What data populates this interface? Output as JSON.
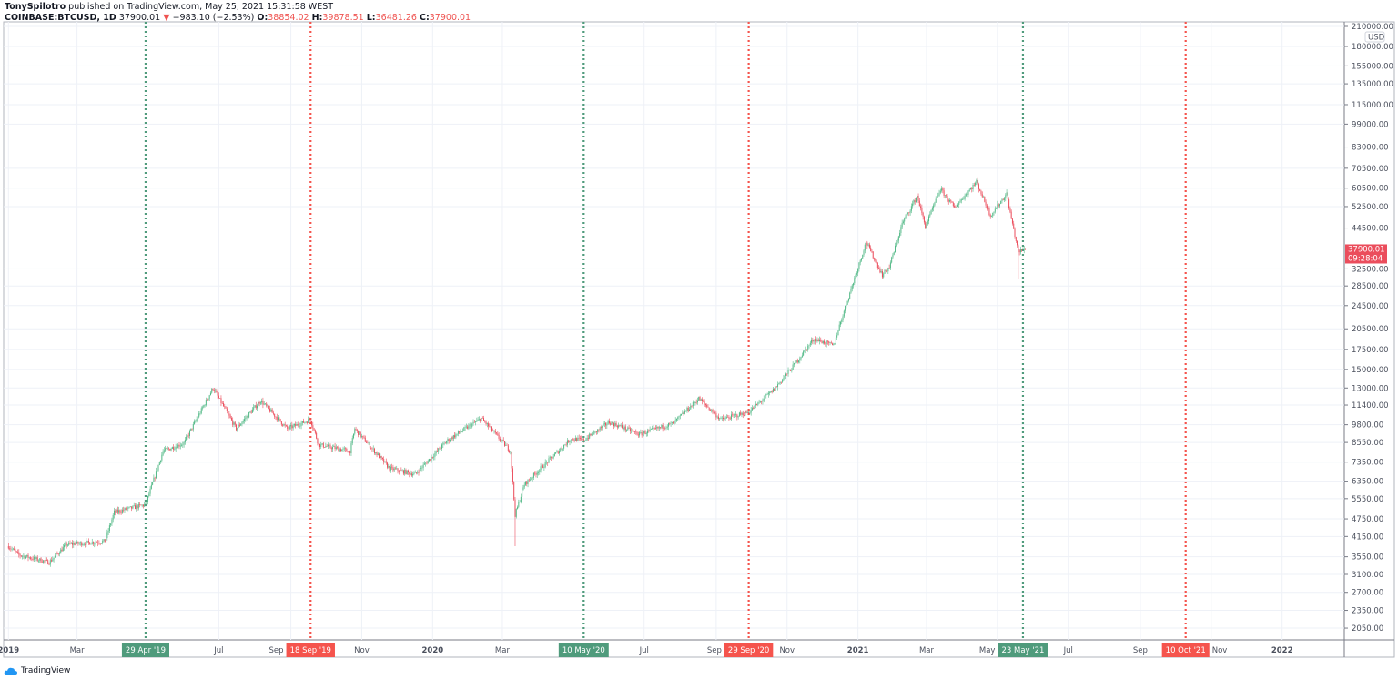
{
  "header": {
    "publisher": "TonySpilotro",
    "published_text": "published on TradingView.com, May 25, 2021 15:31:58 WEST",
    "symbol": "COINBASE:BTCUSD, 1D",
    "last": "37900.01",
    "change": "−983.10 (−2.53%)",
    "open_label": "O:",
    "open": "38854.02",
    "high_label": "H:",
    "high": "39878.51",
    "low_label": "L:",
    "low": "36481.26",
    "close_label": "C:",
    "close": "37900.01"
  },
  "footer": {
    "brand": "TradingView"
  },
  "colors": {
    "up": "#53b987",
    "down": "#eb4d5c",
    "green_marker": "#4f9b7c",
    "red_marker": "#f5544d",
    "grid": "#eef1f7"
  },
  "chart_data": {
    "type": "candlestick",
    "y_scale": "log",
    "y_unit": "USD",
    "ylim": [
      1900,
      210000
    ],
    "xlim": [
      "2019-01-01",
      "2022-03-15"
    ],
    "grid": true,
    "y_ticks": [
      "210000.00",
      "180000.00",
      "155000.00",
      "135000.00",
      "115000.00",
      "99000.00",
      "83000.00",
      "70500.00",
      "60500.00",
      "52500.00",
      "44500.00",
      "32500.00",
      "28500.00",
      "24500.00",
      "20500.00",
      "17500.00",
      "15000.00",
      "13000.00",
      "11400.00",
      "9800.00",
      "8550.00",
      "7350.00",
      "6350.00",
      "5550.00",
      "4750.00",
      "4150.00",
      "3550.00",
      "3100.00",
      "2700.00",
      "2350.00",
      "2050.00"
    ],
    "x_ticks": [
      {
        "date": "2019-01-01",
        "label": "2019"
      },
      {
        "date": "2019-03-01",
        "label": "Mar"
      },
      {
        "date": "2019-07-01",
        "label": "Jul"
      },
      {
        "date": "2019-09-01",
        "label": "Sep"
      },
      {
        "date": "2019-11-01",
        "label": "Nov"
      },
      {
        "date": "2020-01-01",
        "label": "2020"
      },
      {
        "date": "2020-03-01",
        "label": "Mar"
      },
      {
        "date": "2020-07-01",
        "label": "Jul"
      },
      {
        "date": "2020-09-01",
        "label": "Sep"
      },
      {
        "date": "2020-11-01",
        "label": "Nov"
      },
      {
        "date": "2021-01-01",
        "label": "2021"
      },
      {
        "date": "2021-03-01",
        "label": "Mar"
      },
      {
        "date": "2021-05-01",
        "label": "May"
      },
      {
        "date": "2021-07-01",
        "label": "Jul"
      },
      {
        "date": "2021-09-01",
        "label": "Sep"
      },
      {
        "date": "2021-11-01",
        "label": "Nov"
      },
      {
        "date": "2022-01-01",
        "label": "2022"
      }
    ],
    "price_label": {
      "value": "37900.01",
      "countdown": "09:28:04"
    },
    "markers": [
      {
        "date": "2019-04-29",
        "label": "29 Apr '19",
        "color": "green"
      },
      {
        "date": "2019-09-18",
        "label": "18 Sep '19",
        "color": "red"
      },
      {
        "date": "2020-05-10",
        "label": "10 May '20",
        "color": "green"
      },
      {
        "date": "2020-09-29",
        "label": "29 Sep '20",
        "color": "red"
      },
      {
        "date": "2021-05-23",
        "label": "23 May '21",
        "color": "green"
      },
      {
        "date": "2021-10-10",
        "label": "10 Oct '21",
        "color": "red"
      }
    ],
    "close_approx": [
      [
        "2019-01-01",
        3850
      ],
      [
        "2019-01-10",
        3600
      ],
      [
        "2019-02-05",
        3400
      ],
      [
        "2019-02-20",
        3900
      ],
      [
        "2019-03-25",
        4000
      ],
      [
        "2019-04-02",
        5000
      ],
      [
        "2019-04-29",
        5300
      ],
      [
        "2019-05-14",
        8000
      ],
      [
        "2019-06-01",
        8500
      ],
      [
        "2019-06-26",
        13000
      ],
      [
        "2019-07-16",
        9500
      ],
      [
        "2019-08-06",
        11800
      ],
      [
        "2019-08-29",
        9500
      ],
      [
        "2019-09-18",
        10200
      ],
      [
        "2019-09-25",
        8400
      ],
      [
        "2019-10-22",
        8000
      ],
      [
        "2019-10-26",
        9500
      ],
      [
        "2019-11-25",
        7000
      ],
      [
        "2019-12-17",
        6700
      ],
      [
        "2020-01-14",
        8700
      ],
      [
        "2020-02-12",
        10300
      ],
      [
        "2020-03-08",
        8000
      ],
      [
        "2020-03-12",
        4900
      ],
      [
        "2020-03-20",
        6200
      ],
      [
        "2020-04-29",
        8800
      ],
      [
        "2020-05-10",
        8700
      ],
      [
        "2020-06-01",
        10000
      ],
      [
        "2020-06-27",
        9100
      ],
      [
        "2020-07-26",
        9900
      ],
      [
        "2020-08-17",
        12000
      ],
      [
        "2020-09-05",
        10200
      ],
      [
        "2020-09-29",
        10800
      ],
      [
        "2020-10-21",
        12900
      ],
      [
        "2020-11-07",
        15500
      ],
      [
        "2020-11-24",
        19000
      ],
      [
        "2020-12-11",
        18000
      ],
      [
        "2020-12-16",
        21000
      ],
      [
        "2021-01-08",
        40000
      ],
      [
        "2021-01-22",
        31000
      ],
      [
        "2021-01-28",
        33000
      ],
      [
        "2021-02-08",
        46000
      ],
      [
        "2021-02-21",
        57000
      ],
      [
        "2021-02-28",
        45000
      ],
      [
        "2021-03-13",
        60000
      ],
      [
        "2021-03-25",
        52000
      ],
      [
        "2021-04-13",
        63500
      ],
      [
        "2021-04-25",
        49000
      ],
      [
        "2021-05-09",
        58000
      ],
      [
        "2021-05-12",
        50000
      ],
      [
        "2021-05-19",
        37000
      ],
      [
        "2021-05-25",
        37900
      ]
    ]
  }
}
